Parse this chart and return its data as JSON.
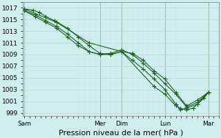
{
  "background_color": "#d0eef0",
  "grid_color_major": "#b8d8d8",
  "grid_color_minor": "#c8e8e8",
  "line_color": "#1a5f1a",
  "marker_color": "#1a5f1a",
  "xlabel": "Pression niveau de la mer( hPa )",
  "xlabel_fontsize": 8,
  "ylim": [
    998.5,
    1018.0
  ],
  "yticks": [
    999,
    1001,
    1003,
    1005,
    1007,
    1009,
    1011,
    1013,
    1015,
    1017
  ],
  "xlim": [
    -0.05,
    9.0
  ],
  "xtick_labels": [
    "Sam",
    "Mer",
    "Dim",
    "Lun",
    "Mar"
  ],
  "xtick_positions": [
    0.0,
    3.5,
    4.5,
    6.5,
    8.5
  ],
  "series1_x": [
    0.0,
    0.4,
    0.7,
    1.0,
    1.4,
    2.0,
    2.5,
    3.0,
    3.5,
    4.0,
    4.5,
    5.0,
    5.5,
    6.0,
    6.5,
    7.0,
    7.5,
    8.0,
    8.5
  ],
  "series1_y": [
    1016.8,
    1016.6,
    1016.2,
    1015.5,
    1014.8,
    1013.5,
    1012.0,
    1010.5,
    1009.2,
    1009.0,
    1009.5,
    1009.2,
    1008.0,
    1006.2,
    1004.8,
    1002.5,
    1000.2,
    1001.2,
    1002.5
  ],
  "series2_x": [
    0.0,
    0.5,
    1.0,
    1.5,
    2.0,
    2.5,
    3.0,
    3.5,
    4.0,
    4.5,
    5.0,
    5.5,
    6.0,
    6.5,
    7.0,
    7.5,
    8.0,
    8.5
  ],
  "series2_y": [
    1016.5,
    1015.8,
    1014.8,
    1013.8,
    1012.5,
    1011.0,
    1009.5,
    1009.0,
    1009.2,
    1009.8,
    1009.0,
    1007.5,
    1005.8,
    1004.0,
    1002.2,
    1000.0,
    1000.8,
    1002.5
  ],
  "series3_x": [
    0.0,
    0.5,
    1.0,
    1.5,
    2.0,
    2.5,
    3.0,
    3.5,
    4.0,
    4.5,
    5.0,
    5.5,
    6.0,
    6.5,
    7.0,
    7.2,
    7.5,
    8.0,
    8.5
  ],
  "series3_y": [
    1016.5,
    1015.5,
    1014.5,
    1013.5,
    1012.0,
    1010.5,
    1009.5,
    1009.0,
    1009.0,
    1009.5,
    1008.0,
    1006.5,
    1004.8,
    1003.0,
    1000.5,
    999.5,
    999.8,
    1000.5,
    1002.5
  ],
  "series4_x": [
    0.0,
    1.5,
    3.0,
    4.5,
    6.0,
    6.5,
    7.0,
    7.2,
    7.5,
    7.8,
    8.0,
    8.3,
    8.5
  ],
  "series4_y": [
    1016.8,
    1014.5,
    1011.0,
    1009.5,
    1003.5,
    1002.2,
    1000.2,
    999.8,
    999.5,
    999.8,
    1000.5,
    1001.5,
    1002.5
  ],
  "vline_positions": [
    0.0,
    3.5,
    4.5,
    6.5,
    8.5
  ],
  "vline_color": "#447744"
}
